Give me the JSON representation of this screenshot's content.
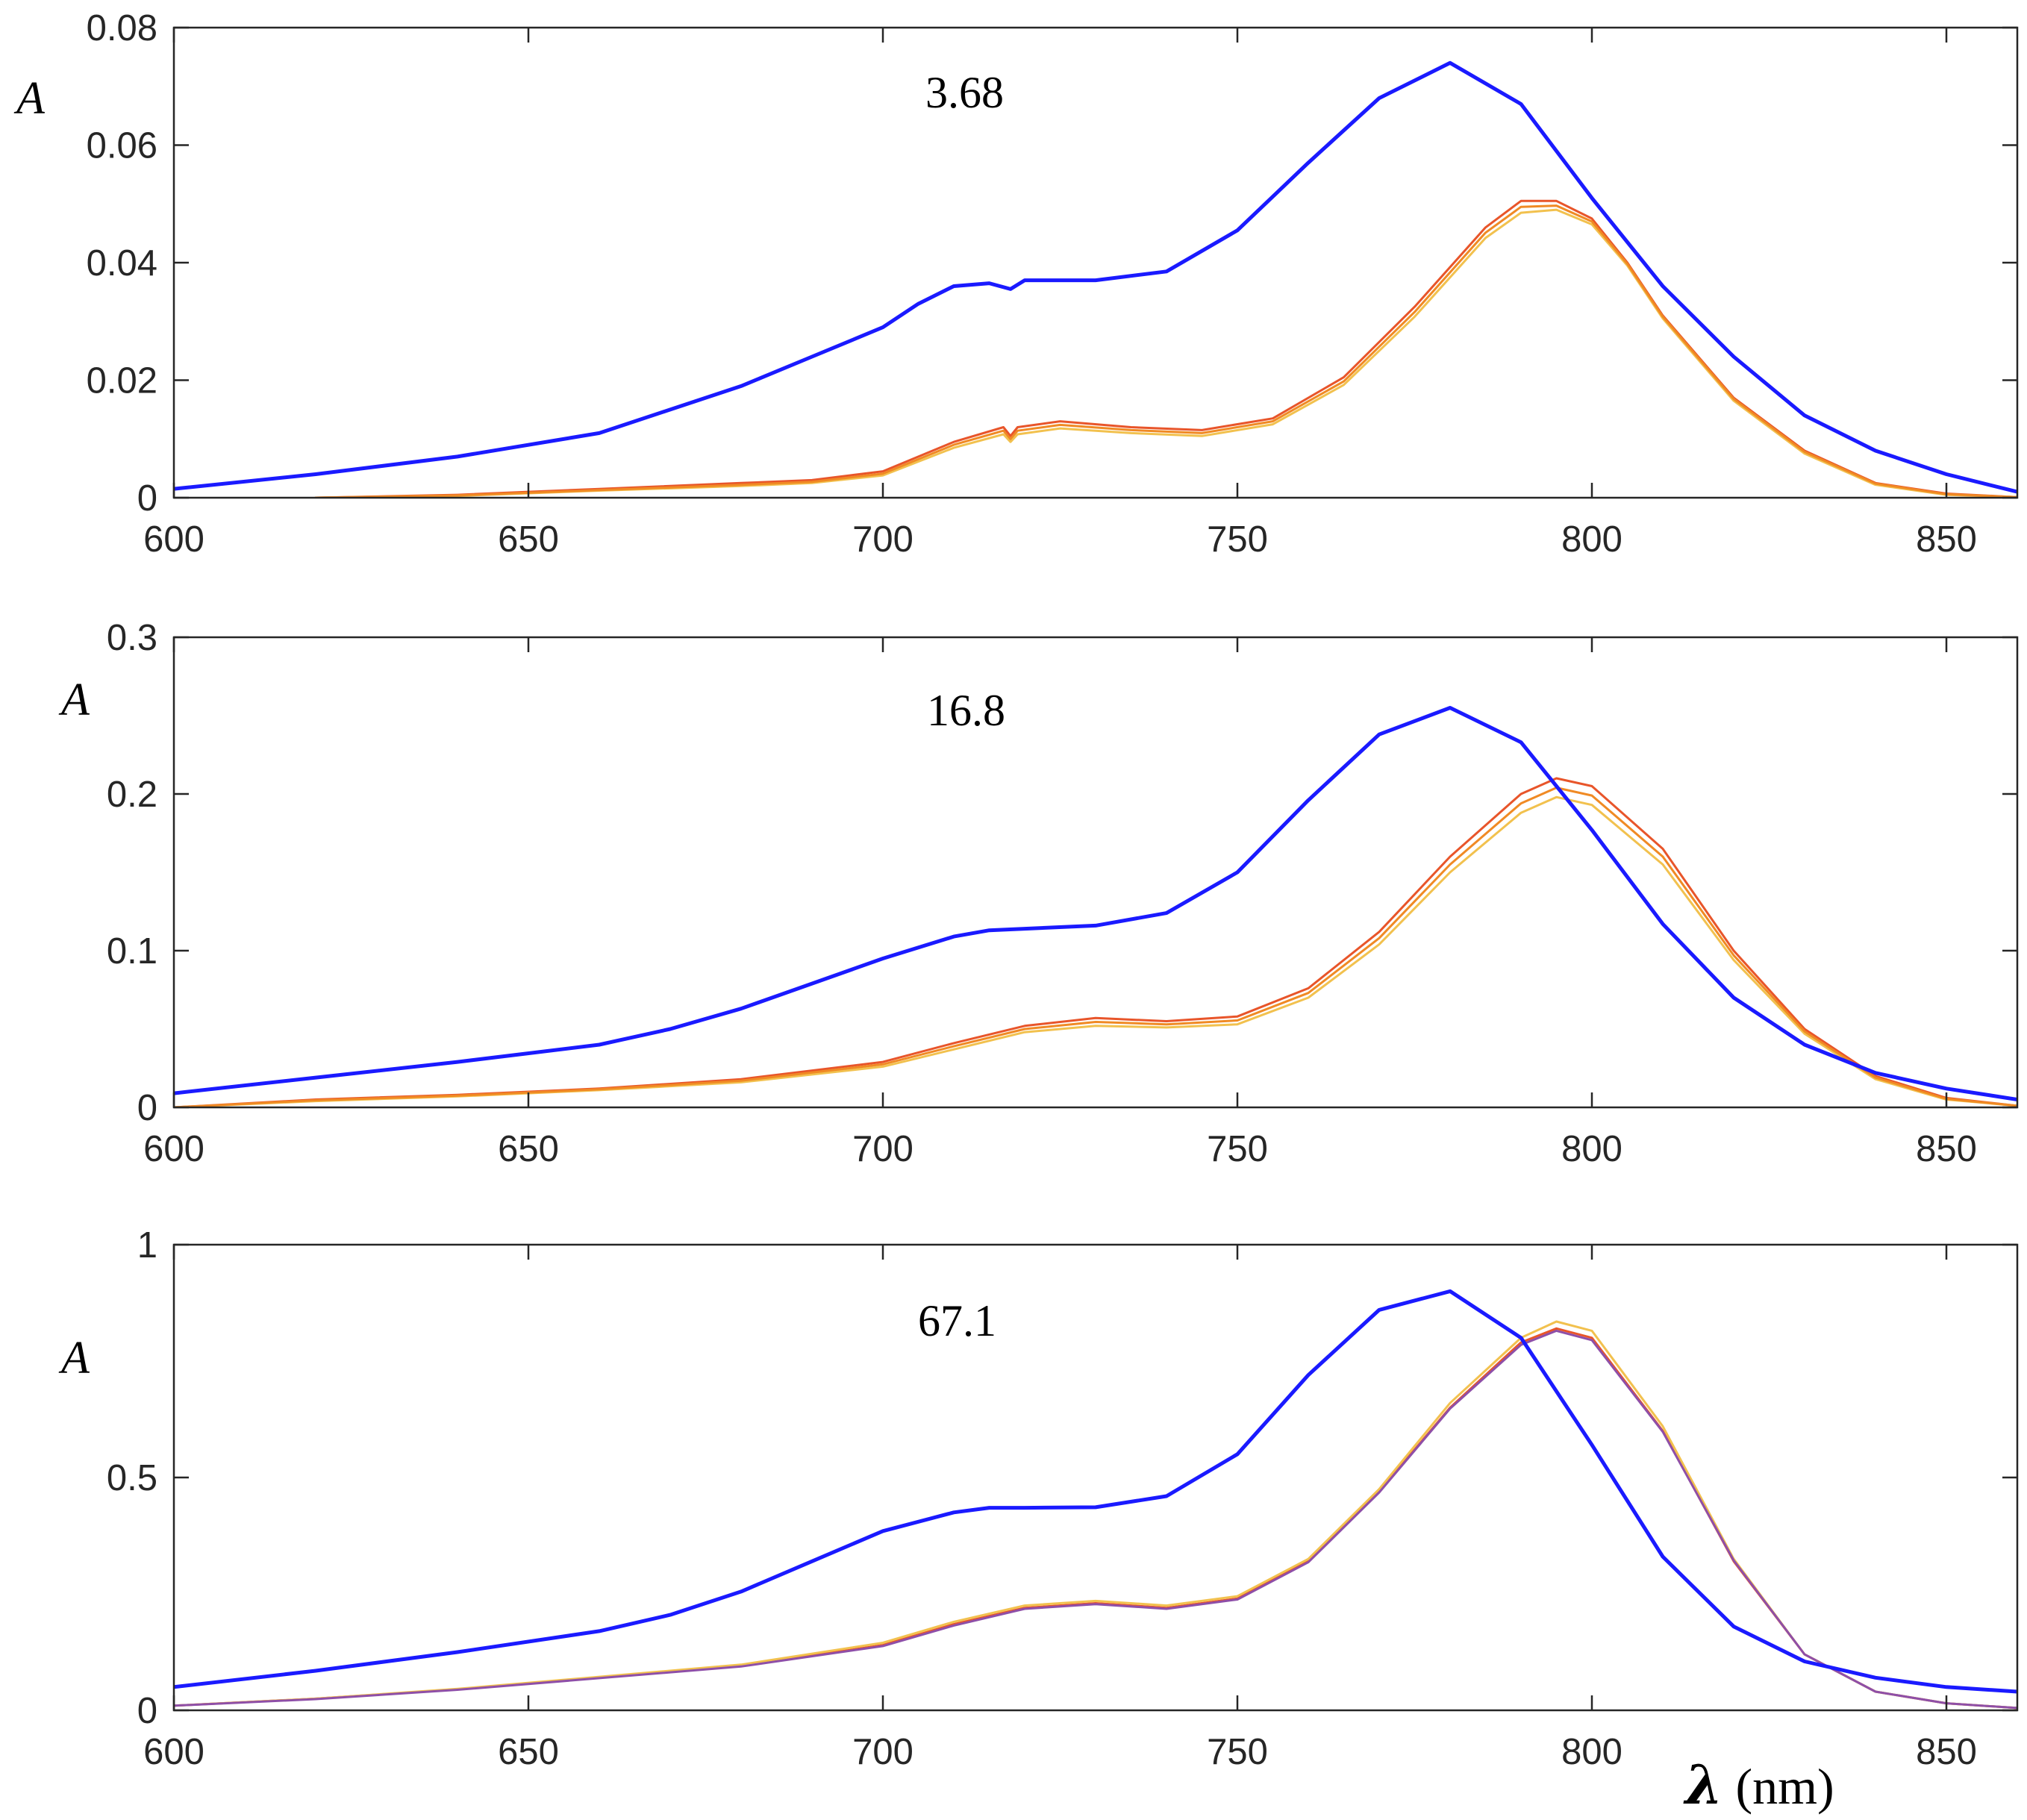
{
  "chart_data": [
    {
      "type": "line",
      "annotation": "3.68",
      "ylabel": "A",
      "xlabel": "",
      "xlim": [
        600,
        860
      ],
      "ylim": [
        0,
        0.08
      ],
      "xticks": [
        "600",
        "650",
        "700",
        "750",
        "800",
        "850"
      ],
      "yticks": [
        "0",
        "0.02",
        "0.04",
        "0.06",
        "0.08"
      ],
      "series": [
        {
          "name": "blue",
          "color": "#1a1aff",
          "x": [
            600,
            620,
            640,
            660,
            670,
            680,
            690,
            700,
            705,
            710,
            715,
            718,
            720,
            730,
            740,
            750,
            760,
            770,
            780,
            790,
            800,
            810,
            820,
            830,
            840,
            850,
            860
          ],
          "y": [
            0.0015,
            0.004,
            0.007,
            0.011,
            0.015,
            0.019,
            0.024,
            0.029,
            0.033,
            0.036,
            0.0365,
            0.0355,
            0.037,
            0.037,
            0.0385,
            0.0455,
            0.057,
            0.068,
            0.074,
            0.067,
            0.051,
            0.036,
            0.024,
            0.014,
            0.008,
            0.004,
            0.001
          ]
        },
        {
          "name": "red",
          "color": "#e8552a",
          "x": [
            620,
            640,
            660,
            680,
            690,
            700,
            710,
            717,
            718,
            719,
            725,
            735,
            745,
            755,
            765,
            775,
            785,
            790,
            795,
            800,
            805,
            810,
            820,
            830,
            840,
            850,
            860
          ],
          "y": [
            0.0,
            0.0005,
            0.0015,
            0.0025,
            0.003,
            0.0045,
            0.0095,
            0.012,
            0.0105,
            0.012,
            0.013,
            0.012,
            0.0115,
            0.0135,
            0.0205,
            0.0325,
            0.046,
            0.0505,
            0.0505,
            0.0475,
            0.04,
            0.031,
            0.017,
            0.008,
            0.0025,
            0.0007,
            0.0001
          ]
        },
        {
          "name": "yellow",
          "color": "#f2c14e",
          "x": [
            620,
            640,
            660,
            680,
            690,
            700,
            710,
            717,
            718,
            719,
            725,
            735,
            745,
            755,
            765,
            775,
            785,
            790,
            795,
            800,
            805,
            810,
            820,
            830,
            840,
            850,
            860
          ],
          "y": [
            0.0,
            0.0003,
            0.0012,
            0.002,
            0.0025,
            0.0038,
            0.0085,
            0.0108,
            0.0095,
            0.0108,
            0.0118,
            0.011,
            0.0105,
            0.0125,
            0.0192,
            0.0308,
            0.0442,
            0.0485,
            0.049,
            0.0465,
            0.0395,
            0.0305,
            0.0165,
            0.0075,
            0.0022,
            0.0005,
            0.0001
          ]
        },
        {
          "name": "orange",
          "color": "#f08a24",
          "x": [
            620,
            640,
            660,
            680,
            690,
            700,
            710,
            717,
            718,
            719,
            725,
            735,
            745,
            755,
            765,
            775,
            785,
            790,
            795,
            800,
            805,
            810,
            820,
            830,
            840,
            850,
            860
          ],
          "y": [
            0.0,
            0.0004,
            0.0013,
            0.0022,
            0.0027,
            0.0041,
            0.009,
            0.0114,
            0.01,
            0.0114,
            0.0124,
            0.0115,
            0.011,
            0.013,
            0.0198,
            0.0316,
            0.0451,
            0.0495,
            0.0497,
            0.047,
            0.0398,
            0.0308,
            0.0168,
            0.0078,
            0.0024,
            0.0006,
            0.0001
          ]
        }
      ]
    },
    {
      "type": "line",
      "annotation": "16.8",
      "ylabel": "A",
      "xlabel": "",
      "xlim": [
        600,
        860
      ],
      "ylim": [
        0,
        0.3
      ],
      "xticks": [
        "600",
        "650",
        "700",
        "750",
        "800",
        "850"
      ],
      "yticks": [
        "0",
        "0.1",
        "0.2",
        "0.3"
      ],
      "series": [
        {
          "name": "blue",
          "color": "#1a1aff",
          "x": [
            600,
            620,
            640,
            660,
            670,
            680,
            690,
            700,
            710,
            715,
            720,
            730,
            740,
            750,
            760,
            770,
            780,
            790,
            800,
            810,
            820,
            830,
            840,
            850,
            860
          ],
          "y": [
            0.009,
            0.019,
            0.029,
            0.04,
            0.05,
            0.063,
            0.079,
            0.095,
            0.109,
            0.113,
            0.114,
            0.116,
            0.124,
            0.15,
            0.196,
            0.238,
            0.255,
            0.233,
            0.177,
            0.117,
            0.07,
            0.04,
            0.022,
            0.012,
            0.005
          ]
        },
        {
          "name": "red",
          "color": "#e8552a",
          "x": [
            600,
            620,
            640,
            660,
            680,
            700,
            710,
            720,
            730,
            740,
            750,
            760,
            770,
            780,
            790,
            795,
            800,
            810,
            820,
            830,
            840,
            850,
            860
          ],
          "y": [
            0.0,
            0.005,
            0.008,
            0.012,
            0.018,
            0.029,
            0.041,
            0.052,
            0.057,
            0.055,
            0.058,
            0.076,
            0.112,
            0.16,
            0.2,
            0.21,
            0.205,
            0.165,
            0.1,
            0.05,
            0.02,
            0.006,
            0.001
          ]
        },
        {
          "name": "yellow",
          "color": "#f2c14e",
          "x": [
            600,
            620,
            640,
            660,
            680,
            700,
            710,
            720,
            730,
            740,
            750,
            760,
            770,
            780,
            790,
            795,
            800,
            810,
            820,
            830,
            840,
            850,
            860
          ],
          "y": [
            0.0,
            0.004,
            0.007,
            0.011,
            0.016,
            0.026,
            0.037,
            0.048,
            0.052,
            0.051,
            0.053,
            0.07,
            0.104,
            0.15,
            0.188,
            0.198,
            0.193,
            0.155,
            0.094,
            0.047,
            0.018,
            0.005,
            0.001
          ]
        },
        {
          "name": "orange",
          "color": "#f08a24",
          "x": [
            600,
            620,
            640,
            660,
            680,
            700,
            710,
            720,
            730,
            740,
            750,
            760,
            770,
            780,
            790,
            795,
            800,
            810,
            820,
            830,
            840,
            850,
            860
          ],
          "y": [
            0.0,
            0.0045,
            0.0075,
            0.0115,
            0.017,
            0.0275,
            0.039,
            0.05,
            0.0545,
            0.053,
            0.0555,
            0.073,
            0.108,
            0.155,
            0.194,
            0.204,
            0.199,
            0.16,
            0.097,
            0.0485,
            0.019,
            0.0055,
            0.001
          ]
        }
      ]
    },
    {
      "type": "line",
      "annotation": "67.1",
      "ylabel": "A",
      "xlabel": "λ (nm)",
      "xlim": [
        600,
        860
      ],
      "ylim": [
        0,
        1
      ],
      "xticks": [
        "600",
        "650",
        "700",
        "750",
        "800",
        "850"
      ],
      "yticks": [
        "0",
        "0.5",
        "1"
      ],
      "series": [
        {
          "name": "blue",
          "color": "#1a1aff",
          "x": [
            600,
            620,
            640,
            660,
            670,
            680,
            690,
            700,
            710,
            715,
            720,
            730,
            740,
            750,
            760,
            770,
            780,
            790,
            800,
            810,
            820,
            830,
            840,
            850,
            860
          ],
          "y": [
            0.05,
            0.085,
            0.125,
            0.17,
            0.205,
            0.255,
            0.32,
            0.385,
            0.425,
            0.435,
            0.435,
            0.436,
            0.46,
            0.55,
            0.72,
            0.86,
            0.9,
            0.8,
            0.57,
            0.33,
            0.18,
            0.105,
            0.07,
            0.05,
            0.04
          ]
        },
        {
          "name": "red",
          "color": "#e8552a",
          "x": [
            600,
            620,
            640,
            660,
            680,
            700,
            710,
            720,
            730,
            740,
            750,
            760,
            770,
            780,
            790,
            795,
            800,
            810,
            820,
            830,
            840,
            850,
            860
          ],
          "y": [
            0.01,
            0.025,
            0.045,
            0.07,
            0.095,
            0.14,
            0.185,
            0.22,
            0.23,
            0.22,
            0.24,
            0.32,
            0.47,
            0.65,
            0.79,
            0.82,
            0.8,
            0.6,
            0.32,
            0.12,
            0.04,
            0.015,
            0.005
          ]
        },
        {
          "name": "yellow",
          "color": "#f2c14e",
          "x": [
            600,
            620,
            640,
            660,
            680,
            700,
            710,
            720,
            730,
            740,
            750,
            760,
            770,
            780,
            790,
            795,
            800,
            810,
            820,
            830,
            840,
            850,
            860
          ],
          "y": [
            0.01,
            0.025,
            0.046,
            0.072,
            0.098,
            0.145,
            0.19,
            0.225,
            0.235,
            0.225,
            0.245,
            0.325,
            0.475,
            0.66,
            0.8,
            0.835,
            0.815,
            0.61,
            0.325,
            0.12,
            0.04,
            0.015,
            0.005
          ]
        },
        {
          "name": "purple",
          "color": "#8e4fa8",
          "x": [
            600,
            620,
            640,
            660,
            680,
            700,
            710,
            720,
            730,
            740,
            750,
            760,
            770,
            780,
            790,
            795,
            800,
            810,
            820,
            830,
            840,
            850,
            860
          ],
          "y": [
            0.01,
            0.024,
            0.044,
            0.069,
            0.094,
            0.138,
            0.182,
            0.218,
            0.228,
            0.218,
            0.238,
            0.318,
            0.468,
            0.648,
            0.785,
            0.815,
            0.795,
            0.598,
            0.322,
            0.12,
            0.04,
            0.015,
            0.005
          ]
        }
      ]
    }
  ]
}
